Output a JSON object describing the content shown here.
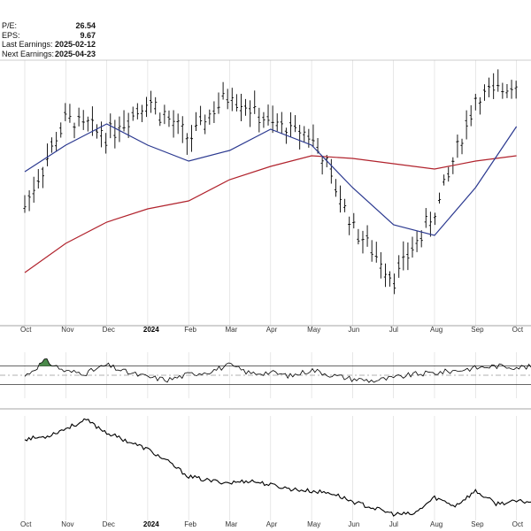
{
  "stats": [
    {
      "label": "P/E:",
      "value": "26.54"
    },
    {
      "label": "EPS:",
      "value": "9.67"
    },
    {
      "label": "Last Earnings:",
      "value": "2025-02-12"
    },
    {
      "label": "Next Earnings:",
      "value": "2025-04-23"
    }
  ],
  "colors": {
    "price": "#000000",
    "ma_short": "#2b3990",
    "ma_long": "#b1232d",
    "rsi_overbought_fill": "#4a8a4a",
    "grid": "#d8d8d8"
  },
  "chart_data": [
    {
      "type": "ohlc",
      "panel": "price",
      "x_ticks": [
        "Oct",
        "Nov",
        "Dec",
        "2024",
        "Feb",
        "Mar",
        "Apr",
        "May",
        "Jun",
        "Jul",
        "Aug",
        "Sep",
        "Oct"
      ],
      "ylim": [
        0,
        100
      ],
      "series": [
        {
          "name": "",
          "style": "ohlc-bars",
          "x": [
            0,
            1,
            2,
            3,
            4,
            5,
            6,
            7,
            8,
            9,
            10,
            11,
            12
          ],
          "values": [
            45,
            78,
            72,
            85,
            70,
            88,
            76,
            72,
            38,
            18,
            42,
            85,
            92
          ]
        },
        {
          "name": "",
          "style": "line",
          "x": [
            0,
            1,
            2,
            3,
            4,
            5,
            6,
            7,
            8,
            9,
            10,
            11,
            12
          ],
          "values": [
            58,
            68,
            76,
            68,
            62,
            66,
            74,
            68,
            52,
            38,
            34,
            52,
            75
          ]
        },
        {
          "name": "",
          "style": "line",
          "x": [
            0,
            1,
            2,
            3,
            4,
            5,
            6,
            7,
            8,
            9,
            10,
            11,
            12
          ],
          "values": [
            20,
            31,
            39,
            44,
            47,
            55,
            60,
            64,
            63,
            61,
            59,
            62,
            64
          ]
        }
      ]
    },
    {
      "type": "line",
      "panel": "rsi",
      "ylim": [
        0,
        100
      ],
      "reference_lines": [
        70,
        50,
        30
      ],
      "x": [
        0,
        0.5,
        1,
        1.5,
        2,
        2.5,
        3,
        3.5,
        4,
        4.5,
        5,
        5.5,
        6,
        6.5,
        7,
        7.5,
        8,
        8.5,
        9,
        9.5,
        10,
        10.5,
        11,
        11.5,
        12
      ],
      "values": [
        48,
        82,
        58,
        55,
        72,
        56,
        46,
        40,
        52,
        58,
        72,
        54,
        56,
        48,
        62,
        50,
        42,
        38,
        44,
        52,
        55,
        60,
        66,
        70,
        68
      ]
    },
    {
      "type": "line",
      "panel": "indicator",
      "ylim": [
        0,
        100
      ],
      "x": [
        0,
        0.5,
        1,
        1.5,
        2,
        2.5,
        3,
        3.5,
        4,
        4.5,
        5,
        5.5,
        6,
        6.5,
        7,
        7.5,
        8,
        8.5,
        9,
        9.5,
        10,
        10.5,
        11,
        11.5,
        12
      ],
      "values": [
        78,
        80,
        88,
        96,
        84,
        76,
        68,
        56,
        42,
        38,
        36,
        38,
        34,
        30,
        28,
        26,
        18,
        12,
        6,
        6,
        22,
        14,
        28,
        16,
        18
      ]
    }
  ]
}
